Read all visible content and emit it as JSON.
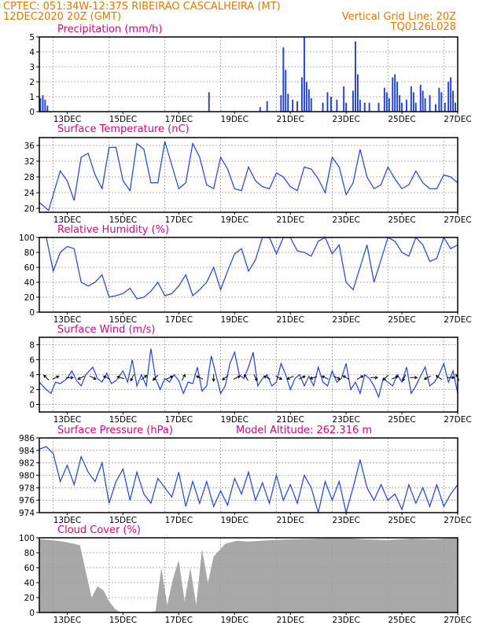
{
  "header": {
    "line1_left": "CPTEC:  051:34W-12:37S  RIBEIRAO CASCALHEIRA (MT)",
    "line2_left": "12DEC2020 20Z (GMT)",
    "line2_right": "Vertical Grid Line: 20Z",
    "line3_right": "TQ0126L028"
  },
  "colors": {
    "header": "#e07800",
    "panel_title": "#e0007a",
    "series": "#1f3fe0",
    "cloud": "#a8a8a8",
    "grid": "#9a9a9a"
  },
  "x_axis": {
    "date_labels": [
      "13DEC",
      "15DEC",
      "17DEC",
      "19DEC",
      "21DEC",
      "23DEC",
      "25DEC",
      "27DEC"
    ],
    "start": "12DEC2020 20Z",
    "end": "27DEC2020 20Z"
  },
  "chart_data": [
    {
      "type": "bar",
      "title": "Precipitation (mm/h)",
      "ylim": [
        0,
        5
      ],
      "yticks": [
        0,
        1,
        2,
        3,
        4,
        5
      ],
      "x_unit": "hours from 12DEC2020 20Z",
      "events": [
        {
          "t": 1,
          "v": 0.9
        },
        {
          "t": 3,
          "v": 1.1
        },
        {
          "t": 5,
          "v": 0.8
        },
        {
          "t": 7,
          "v": 0.4
        },
        {
          "t": 146,
          "v": 1.3
        },
        {
          "t": 190,
          "v": 0.3
        },
        {
          "t": 196,
          "v": 0.7
        },
        {
          "t": 208,
          "v": 1.1
        },
        {
          "t": 210,
          "v": 4.3
        },
        {
          "t": 212,
          "v": 2.8
        },
        {
          "t": 214,
          "v": 1.2
        },
        {
          "t": 218,
          "v": 0.8
        },
        {
          "t": 222,
          "v": 0.7
        },
        {
          "t": 226,
          "v": 2.3
        },
        {
          "t": 228,
          "v": 5.0
        },
        {
          "t": 230,
          "v": 2.0
        },
        {
          "t": 232,
          "v": 1.5
        },
        {
          "t": 234,
          "v": 0.9
        },
        {
          "t": 244,
          "v": 0.6
        },
        {
          "t": 248,
          "v": 1.3
        },
        {
          "t": 251,
          "v": 1.0
        },
        {
          "t": 256,
          "v": 0.8
        },
        {
          "t": 262,
          "v": 1.7
        },
        {
          "t": 264,
          "v": 0.6
        },
        {
          "t": 270,
          "v": 1.4
        },
        {
          "t": 272,
          "v": 4.7
        },
        {
          "t": 274,
          "v": 2.5
        },
        {
          "t": 276,
          "v": 0.8
        },
        {
          "t": 280,
          "v": 0.6
        },
        {
          "t": 284,
          "v": 0.6
        },
        {
          "t": 292,
          "v": 0.6
        },
        {
          "t": 297,
          "v": 1.6
        },
        {
          "t": 299,
          "v": 1.3
        },
        {
          "t": 301,
          "v": 0.9
        },
        {
          "t": 304,
          "v": 2.3
        },
        {
          "t": 306,
          "v": 2.5
        },
        {
          "t": 308,
          "v": 2.0
        },
        {
          "t": 310,
          "v": 1.1
        },
        {
          "t": 312,
          "v": 0.6
        },
        {
          "t": 316,
          "v": 0.8
        },
        {
          "t": 320,
          "v": 1.7
        },
        {
          "t": 322,
          "v": 1.3
        },
        {
          "t": 324,
          "v": 0.6
        },
        {
          "t": 328,
          "v": 1.8
        },
        {
          "t": 330,
          "v": 1.4
        },
        {
          "t": 332,
          "v": 0.9
        },
        {
          "t": 336,
          "v": 1.1
        },
        {
          "t": 341,
          "v": 0.5
        },
        {
          "t": 344,
          "v": 1.6
        },
        {
          "t": 346,
          "v": 1.3
        },
        {
          "t": 349,
          "v": 0.6
        },
        {
          "t": 352,
          "v": 2.0
        },
        {
          "t": 354,
          "v": 2.3
        },
        {
          "t": 356,
          "v": 1.4
        },
        {
          "t": 358,
          "v": 0.6
        }
      ]
    },
    {
      "type": "line",
      "title": "Surface Temperature (nC)",
      "ylim": [
        19,
        38
      ],
      "yticks": [
        20,
        24,
        28,
        32,
        36
      ],
      "x_unit": "hours from 12DEC2020 20Z",
      "x": [
        0,
        8,
        12,
        18,
        24,
        30,
        36,
        42,
        48,
        54,
        60,
        66,
        72,
        78,
        84,
        90,
        96,
        102,
        108,
        114,
        120,
        126,
        132,
        138,
        144,
        150,
        156,
        162,
        168,
        174,
        180,
        186,
        192,
        198,
        204,
        210,
        216,
        222,
        228,
        234,
        240,
        246,
        252,
        258,
        264,
        270,
        276,
        282,
        288,
        294,
        300,
        306,
        312,
        318,
        324,
        330,
        336,
        342,
        348,
        354,
        360
      ],
      "y": [
        21.5,
        19.5,
        23.5,
        29.5,
        27.0,
        22.0,
        33.0,
        34.0,
        28.5,
        25.0,
        35.5,
        35.5,
        27.0,
        24.5,
        36.5,
        35.0,
        26.5,
        26.5,
        37.0,
        31.0,
        25.0,
        26.5,
        36.5,
        33.0,
        26.0,
        25.0,
        33.0,
        30.0,
        25.0,
        24.5,
        30.5,
        27.0,
        25.5,
        25.0,
        29.0,
        28.0,
        25.5,
        24.5,
        30.5,
        30.0,
        27.5,
        24.0,
        33.0,
        30.5,
        23.5,
        26.5,
        35.0,
        28.0,
        25.0,
        26.0,
        30.5,
        27.5,
        25.0,
        26.0,
        29.5,
        26.5,
        25.0,
        25.0,
        28.5,
        28.0,
        26.5
      ]
    },
    {
      "type": "line",
      "title": "Relative Humidity (%)",
      "ylim": [
        0,
        100
      ],
      "yticks": [
        0,
        20,
        40,
        60,
        80,
        100
      ],
      "x_unit": "hours from 12DEC2020 20Z",
      "x": [
        0,
        6,
        12,
        18,
        24,
        30,
        36,
        42,
        48,
        54,
        60,
        66,
        72,
        78,
        84,
        90,
        96,
        102,
        108,
        114,
        120,
        126,
        132,
        138,
        144,
        150,
        156,
        162,
        168,
        174,
        180,
        186,
        192,
        198,
        204,
        210,
        216,
        222,
        228,
        234,
        240,
        246,
        252,
        258,
        264,
        270,
        276,
        282,
        288,
        294,
        300,
        306,
        312,
        318,
        324,
        330,
        336,
        342,
        348,
        354,
        360
      ],
      "y": [
        100,
        100,
        55,
        80,
        88,
        85,
        40,
        35,
        40,
        50,
        20,
        22,
        25,
        32,
        18,
        20,
        28,
        40,
        22,
        25,
        35,
        50,
        22,
        30,
        40,
        60,
        30,
        55,
        78,
        85,
        55,
        70,
        100,
        100,
        78,
        100,
        100,
        82,
        80,
        75,
        95,
        100,
        78,
        90,
        40,
        30,
        60,
        90,
        40,
        70,
        100,
        95,
        80,
        75,
        100,
        90,
        68,
        72,
        100,
        85,
        90
      ]
    },
    {
      "type": "line",
      "title": "Surface Wind (m/s)",
      "ylim": [
        -1,
        9
      ],
      "yticks": [
        0,
        2,
        4,
        6,
        8
      ],
      "x_unit": "hours from 12DEC2020 20Z",
      "x": [
        0,
        6,
        10,
        14,
        18,
        24,
        28,
        32,
        36,
        40,
        46,
        50,
        54,
        58,
        62,
        66,
        72,
        76,
        80,
        84,
        88,
        92,
        96,
        100,
        104,
        108,
        112,
        116,
        120,
        124,
        128,
        132,
        136,
        140,
        144,
        148,
        152,
        156,
        160,
        164,
        168,
        172,
        176,
        180,
        184,
        188,
        192,
        196,
        200,
        204,
        208,
        212,
        216,
        220,
        224,
        228,
        232,
        236,
        240,
        244,
        248,
        252,
        256,
        260,
        264,
        268,
        272,
        276,
        280,
        284,
        288,
        292,
        296,
        300,
        304,
        308,
        312,
        316,
        320,
        324,
        328,
        332,
        336,
        340,
        344,
        348,
        352,
        356,
        360
      ],
      "y": [
        3.0,
        2.0,
        1.5,
        3.0,
        2.8,
        3.5,
        4.5,
        3.2,
        2.5,
        4.0,
        5.0,
        3.5,
        3.0,
        4.2,
        2.8,
        3.2,
        4.5,
        3.0,
        6.0,
        2.5,
        4.0,
        2.5,
        7.5,
        3.5,
        2.0,
        3.5,
        3.0,
        4.0,
        3.2,
        1.5,
        3.0,
        2.8,
        5.0,
        1.8,
        2.5,
        6.5,
        4.0,
        1.5,
        2.5,
        5.5,
        7.0,
        4.0,
        3.5,
        5.0,
        7.0,
        2.5,
        3.5,
        4.0,
        2.5,
        3.0,
        5.5,
        4.0,
        2.0,
        3.5,
        4.0,
        2.5,
        3.8,
        2.5,
        5.0,
        3.0,
        2.5,
        4.5,
        3.0,
        3.5,
        5.5,
        2.0,
        3.0,
        1.5,
        4.0,
        3.5,
        2.5,
        1.0,
        3.5,
        3.0,
        2.5,
        4.0,
        3.0,
        5.0,
        1.5,
        2.5,
        3.8,
        5.0,
        2.5,
        3.0,
        4.0,
        5.5,
        3.0,
        4.5,
        1.5
      ],
      "arrows": [
        {
          "t": 6,
          "u": -1,
          "v": 1
        },
        {
          "t": 14,
          "u": 1,
          "v": 0.5
        },
        {
          "t": 26,
          "u": 1,
          "v": 0
        },
        {
          "t": 36,
          "u": -1,
          "v": -0.5
        },
        {
          "t": 46,
          "u": 1,
          "v": -0.5
        },
        {
          "t": 58,
          "u": -1,
          "v": 0.5
        },
        {
          "t": 70,
          "u": -1,
          "v": 0.3
        },
        {
          "t": 80,
          "u": -0.5,
          "v": -1
        },
        {
          "t": 90,
          "u": 1,
          "v": 0.8
        },
        {
          "t": 100,
          "u": -1,
          "v": -1
        },
        {
          "t": 112,
          "u": 1,
          "v": 0.5
        },
        {
          "t": 124,
          "u": 0.5,
          "v": 1
        },
        {
          "t": 138,
          "u": -1,
          "v": 0.5
        },
        {
          "t": 150,
          "u": 0,
          "v": -1
        },
        {
          "t": 160,
          "u": -1,
          "v": -0.8
        },
        {
          "t": 170,
          "u": 1,
          "v": 0.5
        },
        {
          "t": 178,
          "u": -0.7,
          "v": 1
        },
        {
          "t": 186,
          "u": 0.5,
          "v": -1
        },
        {
          "t": 196,
          "u": -1,
          "v": 0.5
        },
        {
          "t": 206,
          "u": 1,
          "v": -0.5
        },
        {
          "t": 216,
          "u": -1,
          "v": -0.5
        },
        {
          "t": 226,
          "u": 1,
          "v": 0.5
        },
        {
          "t": 236,
          "u": -1,
          "v": -0.3
        },
        {
          "t": 246,
          "u": -1,
          "v": 0.5
        },
        {
          "t": 256,
          "u": 1,
          "v": -0.5
        },
        {
          "t": 264,
          "u": -1,
          "v": 0.6
        },
        {
          "t": 276,
          "u": 1,
          "v": 0.6
        },
        {
          "t": 288,
          "u": 1,
          "v": 0
        },
        {
          "t": 298,
          "u": -1,
          "v": -1
        },
        {
          "t": 306,
          "u": 1,
          "v": 0.5
        },
        {
          "t": 314,
          "u": -0.5,
          "v": -1
        },
        {
          "t": 322,
          "u": 1,
          "v": 0
        },
        {
          "t": 334,
          "u": -1,
          "v": -0.5
        },
        {
          "t": 344,
          "u": -1,
          "v": 0.7
        },
        {
          "t": 354,
          "u": 1,
          "v": 0
        },
        {
          "t": 360,
          "u": -0.5,
          "v": 1
        }
      ]
    },
    {
      "type": "line",
      "title": "Surface Pressure (hPa)",
      "subtitle": "Model Altitude: 262.316 m",
      "ylim": [
        974,
        986
      ],
      "yticks": [
        974,
        976,
        978,
        980,
        982,
        984,
        986
      ],
      "x_unit": "hours from 12DEC2020 20Z",
      "x": [
        0,
        6,
        12,
        18,
        24,
        30,
        36,
        42,
        48,
        54,
        60,
        66,
        72,
        78,
        84,
        90,
        96,
        102,
        108,
        114,
        120,
        126,
        132,
        138,
        144,
        150,
        156,
        162,
        168,
        174,
        180,
        186,
        192,
        198,
        204,
        210,
        216,
        222,
        228,
        234,
        240,
        246,
        252,
        258,
        264,
        270,
        276,
        282,
        288,
        294,
        300,
        306,
        312,
        318,
        324,
        330,
        336,
        342,
        348,
        354,
        360
      ],
      "y": [
        984.2,
        984.6,
        983.5,
        979.0,
        981.6,
        978.5,
        983.0,
        980.5,
        979.0,
        982.0,
        975.5,
        979.0,
        981.0,
        976.0,
        980.5,
        977.0,
        975.5,
        979.5,
        978.0,
        976.5,
        980.5,
        975.0,
        979.0,
        975.5,
        979.0,
        975.0,
        977.5,
        975.2,
        979.5,
        977.0,
        980.5,
        976.0,
        978.8,
        975.5,
        980.0,
        976.0,
        978.5,
        975.5,
        980.0,
        978.0,
        974.0,
        979.0,
        976.0,
        979.0,
        974.0,
        978.0,
        982.5,
        978.0,
        976.0,
        978.5,
        976.0,
        977.0,
        974.5,
        978.5,
        975.5,
        978.0,
        975.0,
        978.5,
        975.0,
        977.0,
        978.5
      ]
    },
    {
      "type": "area",
      "title": "Cloud Cover (%)",
      "ylim": [
        0,
        100
      ],
      "yticks": [
        0,
        20,
        40,
        60,
        80,
        100
      ],
      "x_unit": "hours from 12DEC2020 20Z",
      "x": [
        0,
        10,
        20,
        30,
        35,
        40,
        45,
        50,
        55,
        60,
        65,
        70,
        75,
        80,
        85,
        90,
        95,
        100,
        105,
        110,
        115,
        120,
        125,
        130,
        135,
        140,
        145,
        150,
        160,
        170,
        180,
        200,
        220,
        240,
        260,
        280,
        300,
        320,
        340,
        360
      ],
      "y": [
        98,
        97,
        95,
        92,
        90,
        55,
        20,
        35,
        30,
        15,
        5,
        0,
        0,
        0,
        0,
        0,
        0,
        2,
        60,
        10,
        45,
        70,
        15,
        60,
        10,
        85,
        40,
        75,
        92,
        96,
        95,
        97,
        98,
        99,
        100,
        98,
        97,
        99,
        98,
        100
      ]
    }
  ]
}
